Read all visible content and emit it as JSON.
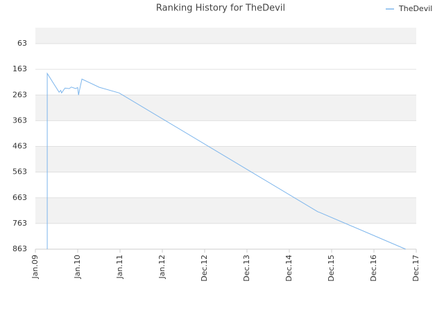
{
  "chart_data": {
    "type": "line",
    "title": "Ranking History for TheDevil",
    "series": [
      {
        "name": "TheDevil",
        "color": "#7cb5ec",
        "x": [
          2009.28,
          2009.28,
          2009.56,
          2009.6,
          2009.62,
          2009.7,
          2009.8,
          2009.85,
          2009.95,
          2010.0,
          2010.02,
          2010.05,
          2010.1,
          2010.51,
          2010.98,
          2015.67,
          2015.72,
          2017.75
        ],
        "values": [
          863,
          179,
          252,
          245,
          255,
          236,
          238,
          232,
          238,
          234,
          263,
          238,
          201,
          233,
          255,
          717,
          720,
          863
        ]
      }
    ],
    "xlim": [
      2009,
      2018
    ],
    "xticks": [
      {
        "value": 2009,
        "label": "Jan.09"
      },
      {
        "value": 2010,
        "label": "Jan.10"
      },
      {
        "value": 2011,
        "label": "Jan.11"
      },
      {
        "value": 2012,
        "label": "Jan.12"
      },
      {
        "value": 2013,
        "label": "Dec.12"
      },
      {
        "value": 2014,
        "label": "Dec.13"
      },
      {
        "value": 2015,
        "label": "Dec.14"
      },
      {
        "value": 2016,
        "label": "Dec.15"
      },
      {
        "value": 2017,
        "label": "Dec.16"
      },
      {
        "value": 2018,
        "label": "Dec.17"
      }
    ],
    "ylim": [
      863,
      1
    ],
    "yticks": [
      63,
      163,
      263,
      363,
      463,
      563,
      663,
      763,
      863
    ],
    "grid": true,
    "legend": "top-right"
  }
}
